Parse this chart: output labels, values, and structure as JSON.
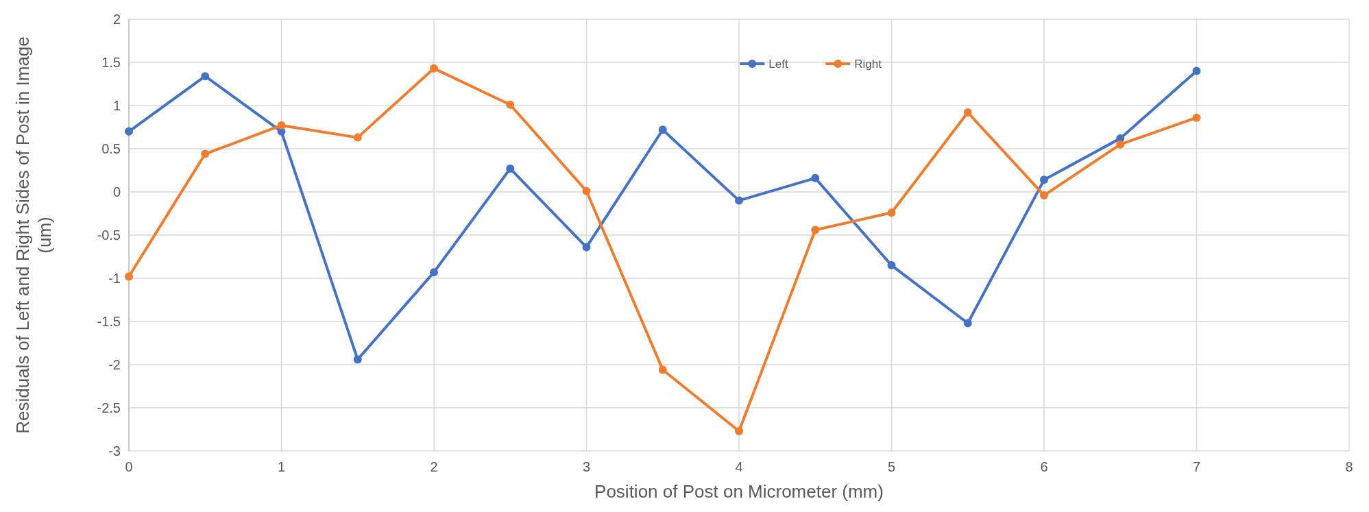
{
  "chart_data": {
    "type": "line",
    "xlabel": "Position of Post on Micrometer (mm)",
    "ylabel": "Residuals of Left and Right Sides of Post in Image (um)",
    "x": [
      0,
      0.5,
      1,
      1.5,
      2,
      2.5,
      3,
      3.5,
      4,
      4.5,
      5,
      5.5,
      6,
      6.5,
      7
    ],
    "series": [
      {
        "name": "Left",
        "color": "#4472c4",
        "values": [
          0.7,
          1.34,
          0.7,
          -1.94,
          -0.93,
          0.27,
          -0.64,
          0.72,
          -0.1,
          0.16,
          -0.85,
          -1.52,
          0.14,
          0.62,
          1.4
        ]
      },
      {
        "name": "Right",
        "color": "#ed7d31",
        "values": [
          -0.98,
          0.44,
          0.77,
          0.63,
          1.43,
          1.01,
          0.01,
          -2.06,
          -2.77,
          -0.44,
          -0.24,
          0.92,
          -0.04,
          0.55,
          0.86
        ]
      }
    ],
    "xlim": [
      0,
      8
    ],
    "xticks": [
      0,
      1,
      2,
      3,
      4,
      5,
      6,
      7,
      8
    ],
    "ylim": [
      -3,
      2
    ],
    "yticks": [
      -3,
      {
        "value": -2.5,
        "label": "-2.5"
      },
      -2,
      {
        "value": -1.5,
        "label": "-1.5"
      },
      -1,
      {
        "value": -0.5,
        "label": "-0.5"
      },
      0,
      {
        "value": 0.5,
        "label": "0.5"
      },
      1,
      {
        "value": 1.5,
        "label": "1.5"
      },
      2
    ],
    "grid": true,
    "legend": "top",
    "marker": "circle",
    "line_style": "solid"
  }
}
